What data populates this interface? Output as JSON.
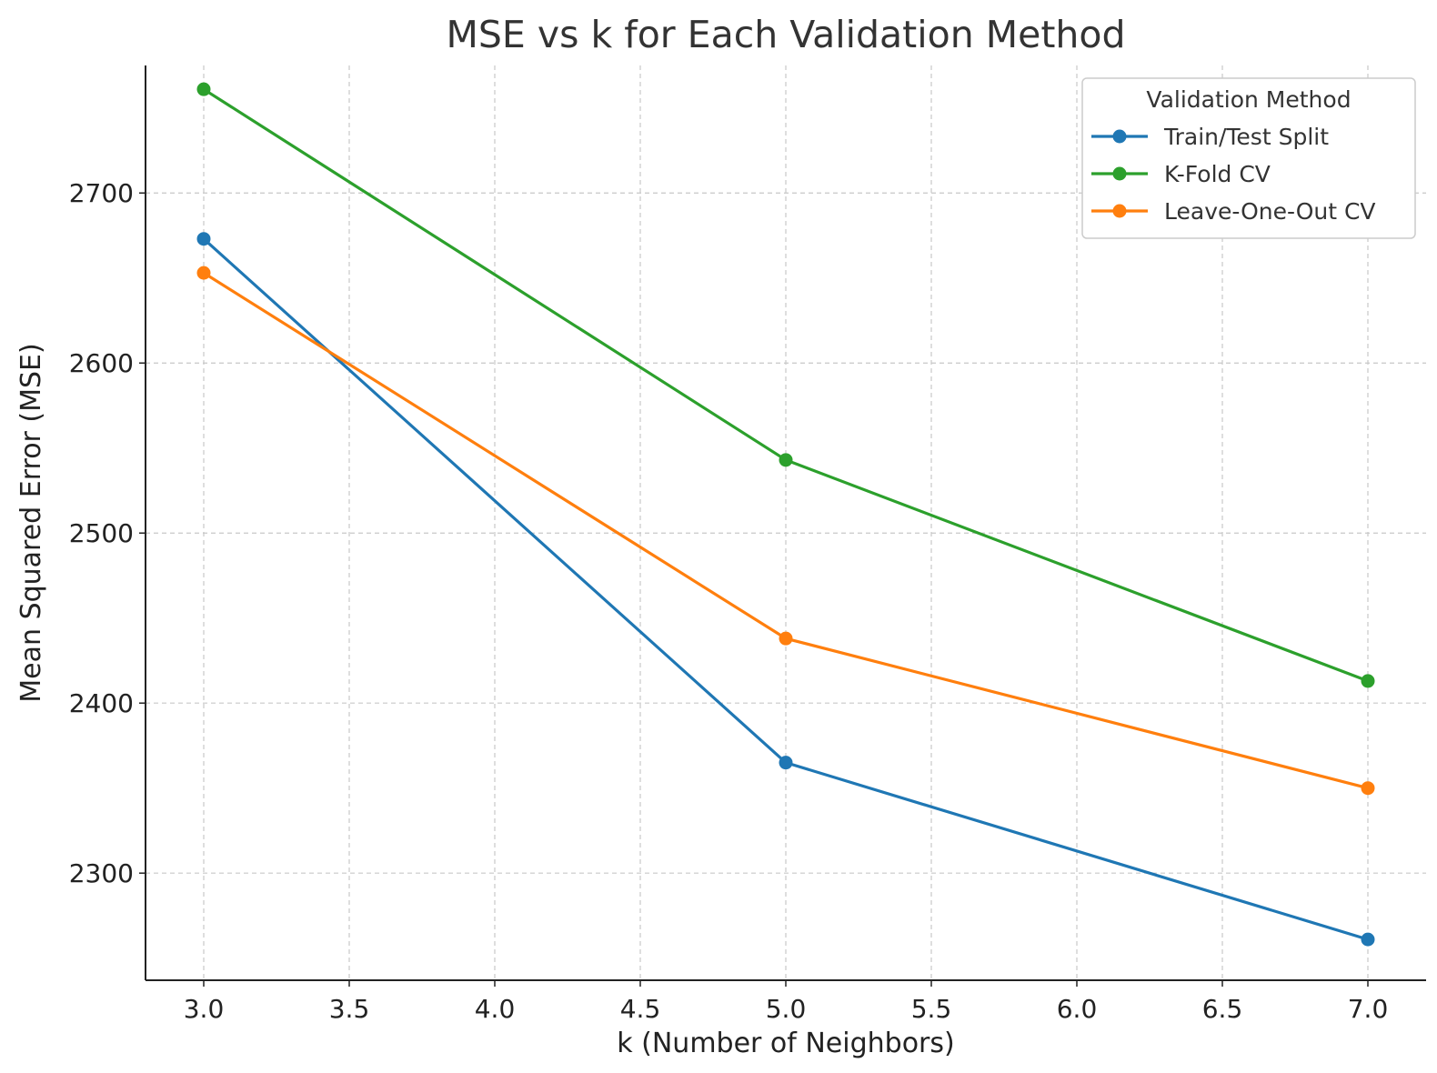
{
  "chart_data": {
    "type": "line",
    "title": "MSE vs k for Each Validation Method",
    "xlabel": "k (Number of Neighbors)",
    "ylabel": "Mean Squared Error (MSE)",
    "xlim": [
      2.8,
      7.2
    ],
    "ylim": [
      2237,
      2775
    ],
    "xticks": [
      3.0,
      3.5,
      4.0,
      4.5,
      5.0,
      5.5,
      6.0,
      6.5,
      7.0
    ],
    "xtick_labels": [
      "3.0",
      "3.5",
      "4.0",
      "4.5",
      "5.0",
      "5.5",
      "6.0",
      "6.5",
      "7.0"
    ],
    "yticks": [
      2300,
      2400,
      2500,
      2600,
      2700
    ],
    "ytick_labels": [
      "2300",
      "2400",
      "2500",
      "2600",
      "2700"
    ],
    "grid": true,
    "legend": {
      "title": "Validation Method",
      "position": "top-right"
    },
    "series": [
      {
        "name": "Train/Test Split",
        "color": "#1f77b4",
        "x": [
          3,
          5,
          7
        ],
        "y": [
          2673,
          2365,
          2261
        ]
      },
      {
        "name": "K-Fold CV",
        "color": "#2ca02c",
        "x": [
          3,
          5,
          7
        ],
        "y": [
          2761,
          2543,
          2413
        ]
      },
      {
        "name": "Leave-One-Out CV",
        "color": "#ff7f0e",
        "x": [
          3,
          5,
          7
        ],
        "y": [
          2653,
          2438,
          2350
        ]
      }
    ]
  }
}
